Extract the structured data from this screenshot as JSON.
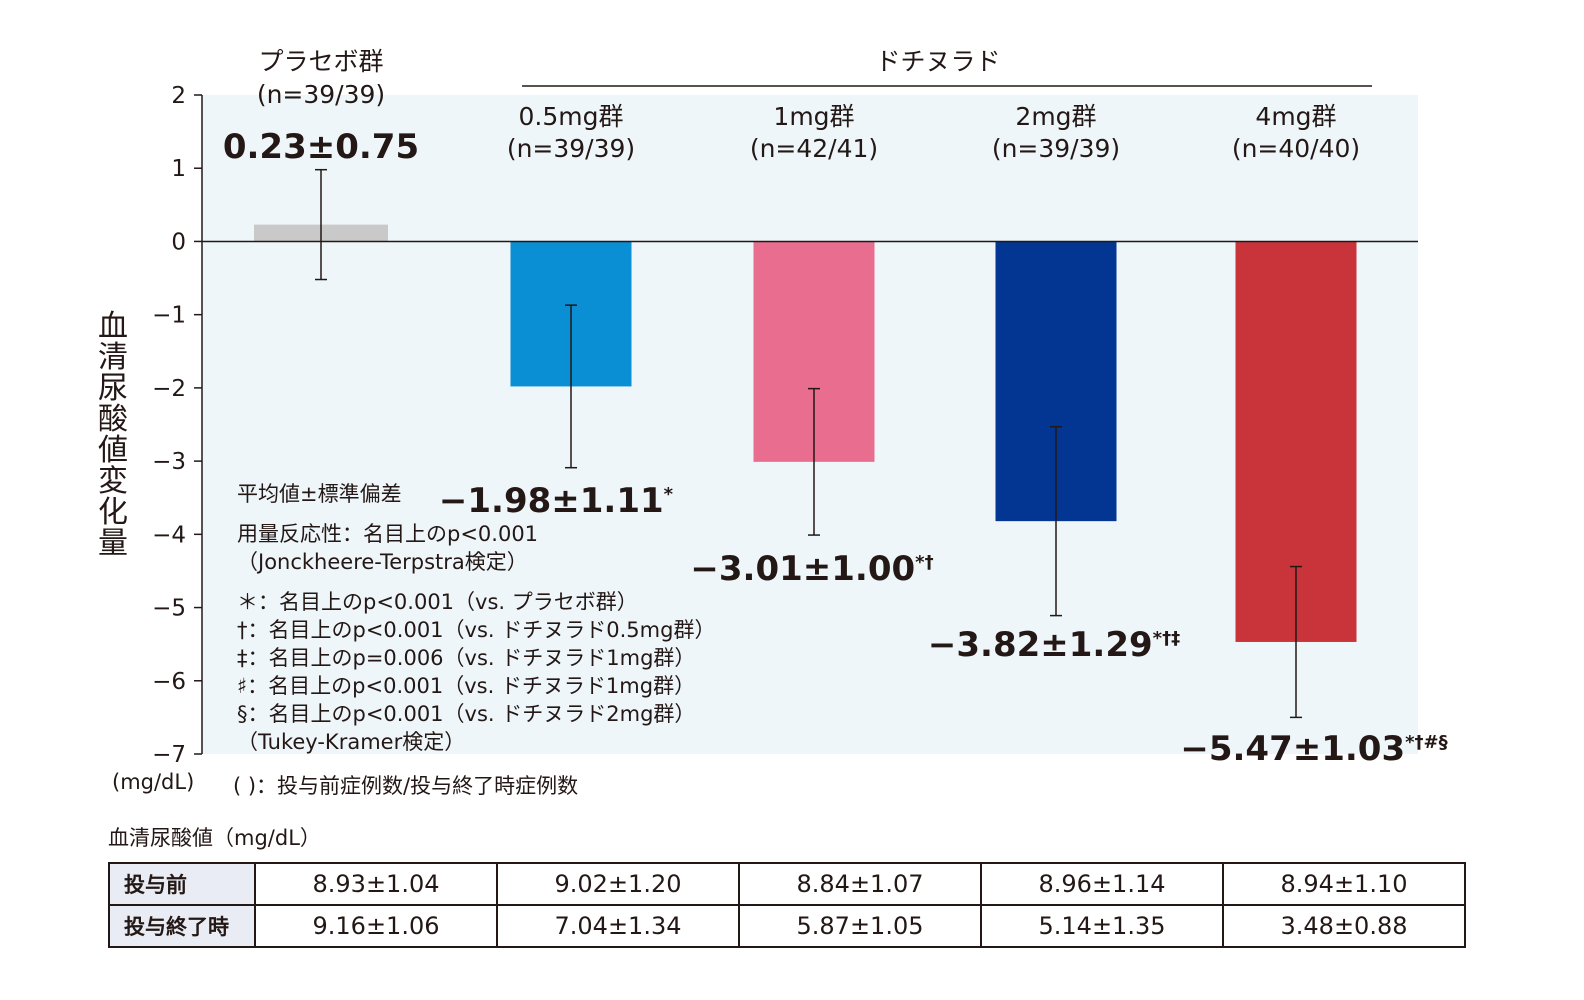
{
  "chart_data": {
    "type": "bar",
    "ylabel": "血清尿酸値変化量",
    "ylim": [
      -7,
      2
    ],
    "yticks": [
      "2",
      "1",
      "0",
      "−1",
      "−2",
      "−3",
      "−4",
      "−5",
      "−6",
      "−7"
    ],
    "unit": "(mg/dL)",
    "drug_header": "ドチヌラド",
    "groups": [
      {
        "name": "プラセボ群",
        "n": "(n=39/39)",
        "value": 0.23,
        "sd": 0.75,
        "label": "0.23±0.75",
        "sup": "",
        "color": "#c9c9c9"
      },
      {
        "name": "0.5mg群",
        "n": "(n=39/39)",
        "value": -1.98,
        "sd": 1.11,
        "label": "−1.98±1.11",
        "sup": "*",
        "color": "#0a8ed4"
      },
      {
        "name": "1mg群",
        "n": "(n=42/41)",
        "value": -3.01,
        "sd": 1.0,
        "label": "−3.01±1.00",
        "sup": "*†",
        "color": "#e86d8e"
      },
      {
        "name": "2mg群",
        "n": "(n=39/39)",
        "value": -3.82,
        "sd": 1.29,
        "label": "−3.82±1.29",
        "sup": "*†‡",
        "color": "#033592"
      },
      {
        "name": "4mg群",
        "n": "(n=40/40)",
        "value": -5.47,
        "sd": 1.03,
        "label": "−5.47±1.03",
        "sup": "*†#§",
        "color": "#c9343b"
      }
    ]
  },
  "notes": {
    "mean_sd": "平均値±標準偏差",
    "dose_response": "用量反応性：名目上のp<0.001",
    "jt_test": "（Jonckheere-Terpstra検定）",
    "star": "＊：名目上のp<0.001（vs. プラセボ群）",
    "dagger": "†：名目上のp<0.001（vs. ドチヌラド0.5mg群）",
    "ddagger": "‡：名目上のp=0.006（vs. ドチヌラド1mg群）",
    "sharp": "♯：名目上のp<0.001（vs. ドチヌラド1mg群）",
    "section": "§：名目上のp<0.001（vs. ドチヌラド2mg群）",
    "tukey": "（Tukey-Kramer検定）"
  },
  "footer": {
    "unit": "(mg/dL)",
    "paren_note": "( )：投与前症例数/投与終了時症例数"
  },
  "table": {
    "title": "血清尿酸値（mg/dL）",
    "rows": [
      {
        "label": "投与前",
        "values": [
          "8.93±1.04",
          "9.02±1.20",
          "8.84±1.07",
          "8.96±1.14",
          "8.94±1.10"
        ]
      },
      {
        "label": "投与終了時",
        "values": [
          "9.16±1.06",
          "7.04±1.34",
          "5.87±1.05",
          "5.14±1.35",
          "3.48±0.88"
        ]
      }
    ]
  },
  "colors": {
    "plot_background": "#eef6fa",
    "axis": "#231815"
  }
}
